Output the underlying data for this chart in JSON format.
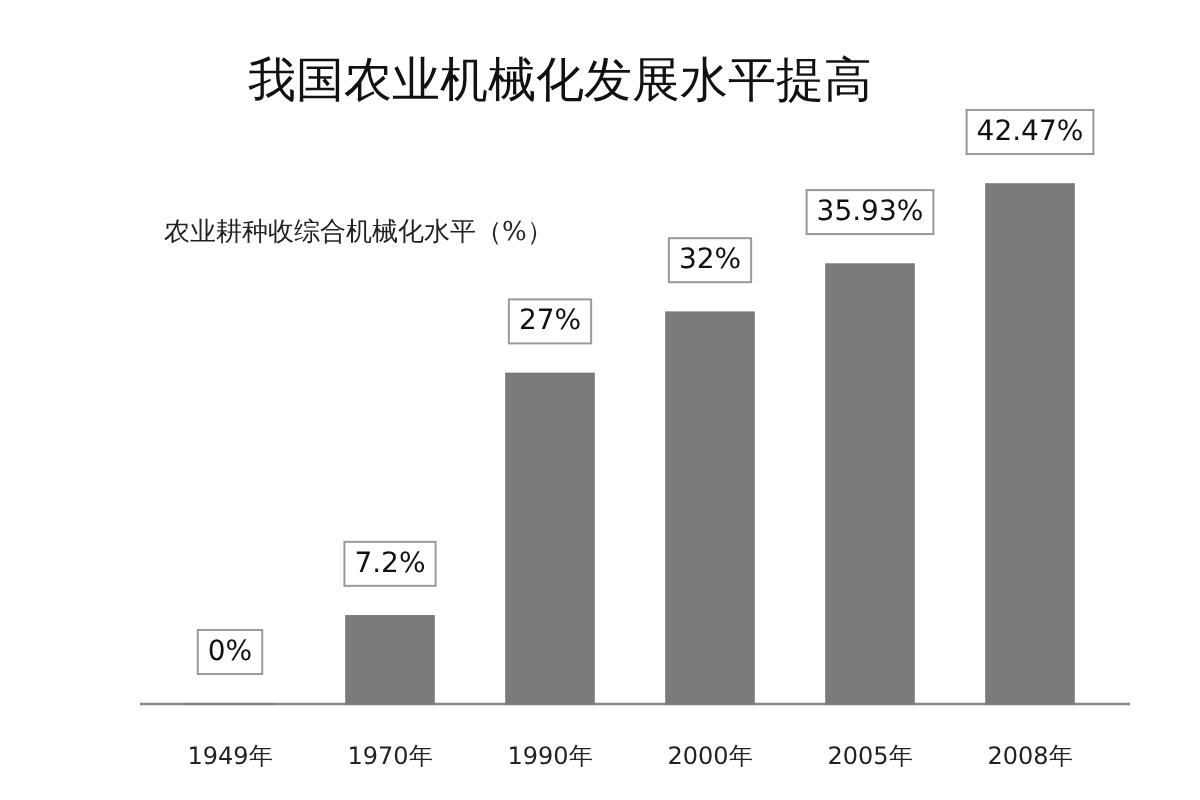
{
  "chart_data": {
    "type": "bar",
    "title": "我国农业机械化发展水平提高",
    "subtitle": "农业耕种收综合机械化水平（%）",
    "categories": [
      "1949年",
      "1970年",
      "1990年",
      "2000年",
      "2005年",
      "2008年"
    ],
    "values": [
      0,
      7.2,
      27,
      32,
      35.93,
      42.47
    ],
    "value_labels": [
      "0%",
      "7.2%",
      "27%",
      "32%",
      "35.93%",
      "42.47%"
    ],
    "color": "#7a7a7a"
  }
}
